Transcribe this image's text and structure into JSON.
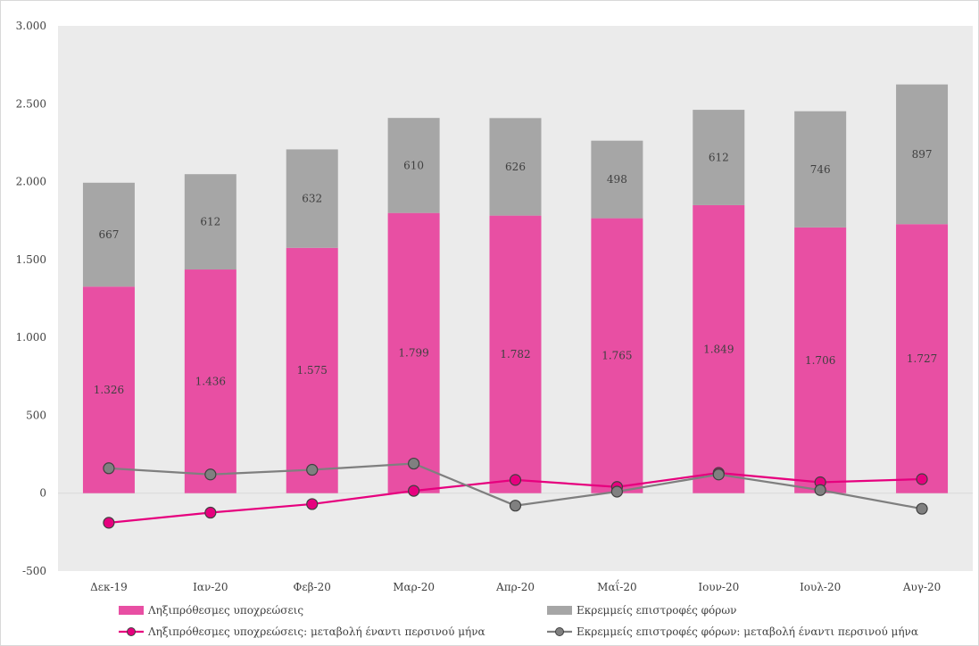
{
  "chart_data": {
    "type": "bar",
    "stacked": true,
    "categories": [
      "Δεκ-19",
      "Ιαν-20",
      "Φεβ-20",
      "Μαρ-20",
      "Απρ-20",
      "Μαΐ-20",
      "Ιουν-20",
      "Ιουλ-20",
      "Αυγ-20"
    ],
    "series": [
      {
        "name": "Ληξιπρόθεσμες υποχρεώσεις",
        "kind": "bar",
        "color": "#e84fa3",
        "values": [
          1326,
          1436,
          1575,
          1799,
          1782,
          1765,
          1849,
          1706,
          1727
        ],
        "labels": [
          "1.326",
          "1.436",
          "1.575",
          "1.799",
          "1.782",
          "1.765",
          "1.849",
          "1.706",
          "1.727"
        ]
      },
      {
        "name": "Εκρεμμείς επιστροφές φόρων",
        "kind": "bar",
        "color": "#a6a6a6",
        "values": [
          667,
          612,
          632,
          610,
          626,
          498,
          612,
          746,
          897
        ],
        "labels": [
          "667",
          "612",
          "632",
          "610",
          "626",
          "498",
          "612",
          "746",
          "897"
        ]
      },
      {
        "name": "Ληξιπρόθεσμες υποχρεώσεις: μεταβολή έναντι περσινού μήνα",
        "kind": "line",
        "color": "#e6007e",
        "marker": "#e6007e",
        "values": [
          -190,
          -125,
          -70,
          15,
          85,
          40,
          130,
          70,
          90
        ]
      },
      {
        "name": "Εκρεμμείς επιστροφές φόρων: μεταβολή έναντι περσινού μήνα",
        "kind": "line",
        "color": "#7f7f7f",
        "marker": "#808080",
        "values": [
          160,
          120,
          150,
          190,
          -80,
          10,
          120,
          20,
          -100
        ]
      }
    ],
    "ylim": [
      -500,
      3000
    ],
    "yticks": [
      -500,
      0,
      500,
      1000,
      1500,
      2000,
      2500,
      3000
    ],
    "ytick_labels": [
      "-500",
      "0",
      "500",
      "1.000",
      "1.500",
      "2.000",
      "2.500",
      "3.000"
    ],
    "grid": false,
    "plot_background": "#ebebeb",
    "legend_position": "bottom",
    "title": "",
    "xlabel": "",
    "ylabel": ""
  }
}
